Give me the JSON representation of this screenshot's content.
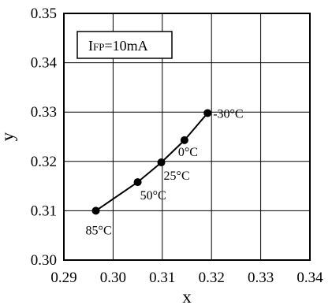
{
  "chart_data": {
    "type": "line",
    "xlabel": "x",
    "ylabel": "y",
    "xlim": [
      0.29,
      0.34
    ],
    "ylim": [
      0.3,
      0.35
    ],
    "x_ticks": [
      "0.29",
      "0.30",
      "0.31",
      "0.32",
      "0.33",
      "0.34"
    ],
    "y_ticks": [
      "0.30",
      "0.31",
      "0.32",
      "0.33",
      "0.34",
      "0.35"
    ],
    "grid": true,
    "annotation_box": {
      "prefix": "I",
      "subscript": "FP",
      "suffix": "=10mA"
    },
    "series": [
      {
        "points": [
          {
            "x": 0.2965,
            "y": 0.31,
            "label": "85°C"
          },
          {
            "x": 0.305,
            "y": 0.3158,
            "label": "50°C"
          },
          {
            "x": 0.3098,
            "y": 0.3198,
            "label": "25°C"
          },
          {
            "x": 0.3145,
            "y": 0.3243,
            "label": "0°C"
          },
          {
            "x": 0.3192,
            "y": 0.3298,
            "label": "-30°C"
          }
        ]
      }
    ]
  }
}
